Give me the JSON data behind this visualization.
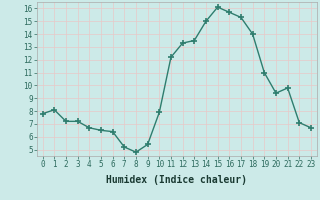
{
  "x": [
    0,
    1,
    2,
    3,
    4,
    5,
    6,
    7,
    8,
    9,
    10,
    11,
    12,
    13,
    14,
    15,
    16,
    17,
    18,
    19,
    20,
    21,
    22,
    23
  ],
  "y": [
    7.8,
    8.1,
    7.2,
    7.2,
    6.7,
    6.5,
    6.4,
    5.2,
    4.8,
    5.4,
    7.9,
    12.2,
    13.3,
    13.5,
    15.0,
    16.1,
    15.7,
    15.3,
    14.0,
    11.0,
    9.4,
    9.8,
    7.1,
    6.7
  ],
  "line_color": "#2e7d6e",
  "marker": "+",
  "marker_size": 4,
  "marker_lw": 1.2,
  "bg_color": "#cceae8",
  "grid_color": "#e8c8c8",
  "xlabel": "Humidex (Indice chaleur)",
  "ylim": [
    4.5,
    16.5
  ],
  "xlim": [
    -0.5,
    23.5
  ],
  "yticks": [
    5,
    6,
    7,
    8,
    9,
    10,
    11,
    12,
    13,
    14,
    15,
    16
  ],
  "xticks": [
    0,
    1,
    2,
    3,
    4,
    5,
    6,
    7,
    8,
    9,
    10,
    11,
    12,
    13,
    14,
    15,
    16,
    17,
    18,
    19,
    20,
    21,
    22,
    23
  ],
  "tick_fontsize": 5.5,
  "xlabel_fontsize": 7,
  "linewidth": 1.0
}
